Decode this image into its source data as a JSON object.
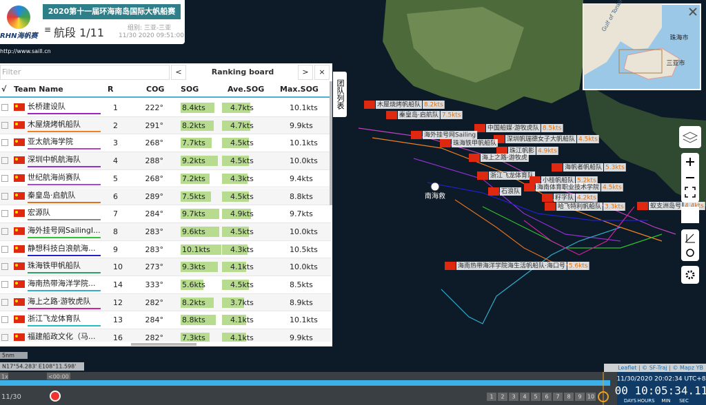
{
  "header": {
    "logo": "RHN海帆赛",
    "url": "http://www.saill.cn",
    "title": "2020第十一届环海南岛国际大帆船赛",
    "leg": "航段 1/11",
    "group": "组别: 三亚-三亚",
    "time": "11/30 2020 09:51:00"
  },
  "panel": {
    "filter": "Filter",
    "title": "Ranking board",
    "prev": "<",
    "next": ">",
    "close": "×",
    "columns": [
      "√",
      "Team Name",
      "R",
      "COG",
      "SOG",
      "Ave.SOG",
      "Max.SOG"
    ],
    "rows": [
      {
        "name": "长桥建设队",
        "r": "1",
        "cog": "222°",
        "sog": "8.4kts",
        "ave": "4.7kts",
        "max": "10.1kts",
        "color": "#a020c0"
      },
      {
        "name": "木屋烧烤帆船队",
        "r": "2",
        "cog": "291°",
        "sog": "8.2kts",
        "ave": "4.7kts",
        "max": "9.9kts",
        "color": "#f08020"
      },
      {
        "name": "亚太航海学院",
        "r": "3",
        "cog": "268°",
        "sog": "7.7kts",
        "ave": "4.5kts",
        "max": "10.1kts",
        "color": "#c040c0"
      },
      {
        "name": "深圳中帆航海队",
        "r": "4",
        "cog": "288°",
        "sog": "9.2kts",
        "ave": "4.5kts",
        "max": "10.0kts",
        "color": "#9030d0"
      },
      {
        "name": "世纪航海尚赛队",
        "r": "5",
        "cog": "268°",
        "sog": "7.2kts",
        "ave": "4.3kts",
        "max": "9.4kts",
        "color": "#b040e0"
      },
      {
        "name": "秦皇岛·启航队",
        "r": "6",
        "cog": "289°",
        "sog": "7.5kts",
        "ave": "4.5kts",
        "max": "8.8kts",
        "color": "#e07020"
      },
      {
        "name": "宏源队",
        "r": "7",
        "cog": "284°",
        "sog": "9.7kts",
        "ave": "4.9kts",
        "max": "9.7kts",
        "color": "#888888"
      },
      {
        "name": "海外挂号网SailingI...",
        "r": "8",
        "cog": "283°",
        "sog": "9.6kts",
        "ave": "4.5kts",
        "max": "10.0kts",
        "color": "#30c030"
      },
      {
        "name": "静想科技白浪航海...",
        "r": "9",
        "cog": "283°",
        "sog": "10.1kts",
        "ave": "4.3kts",
        "max": "10.5kts",
        "color": "#2020d0"
      },
      {
        "name": "珠海铁甲帆船队",
        "r": "10",
        "cog": "273°",
        "sog": "9.3kts",
        "ave": "4.1kts",
        "max": "10.0kts",
        "color": "#30a060"
      },
      {
        "name": "海南热带海洋学院...",
        "r": "14",
        "cog": "333°",
        "sog": "5.6kts",
        "ave": "4.5kts",
        "max": "8.5kts",
        "color": "#30b0d0"
      },
      {
        "name": "海上之路·游牧虎队",
        "r": "12",
        "cog": "282°",
        "sog": "8.2kts",
        "ave": "3.7kts",
        "max": "8.9kts",
        "color": "#d020a0"
      },
      {
        "name": "浙江飞龙体育队",
        "r": "13",
        "cog": "284°",
        "sog": "8.8kts",
        "ave": "4.1kts",
        "max": "10.1kts",
        "color": "#20c0c0"
      },
      {
        "name": "福建船政文化（马...",
        "r": "16",
        "cog": "282°",
        "sog": "7.3kts",
        "ave": "4.1kts",
        "max": "9.9kts",
        "color": "#c080a0"
      }
    ]
  },
  "side_tab": "团队列表",
  "map": {
    "places": [
      "南海救"
    ],
    "boats": [
      {
        "name": "木屋烧烤帆船队",
        "speed": "8.2kts"
      },
      {
        "name": "秦皇岛·启航队",
        "speed": "7.5kts"
      },
      {
        "name": "中国船媒·游牧虎队",
        "speed": "8.5kts"
      },
      {
        "name": "海外挂号网Sailing"
      },
      {
        "name": "深圳帆瑞德女子大帆船队",
        "speed": "4.5kts"
      },
      {
        "name": "珠海铁甲帆船队"
      },
      {
        "name": "珠江帆影",
        "speed": "4.9kts"
      },
      {
        "name": "海上之路·游牧虎"
      },
      {
        "name": "海帆者帆船队",
        "speed": "5.3kts"
      },
      {
        "name": "浙江飞龙体育队"
      },
      {
        "name": "小桂帆船队",
        "speed": "5.2kts"
      },
      {
        "name": "海南体育职业技术学院",
        "speed": "4.5kts"
      },
      {
        "name": "石浪队"
      },
      {
        "name": "籽字队",
        "speed": "4.2kts"
      },
      {
        "name": "哈飞特利帆船队",
        "speed": "3.3kts"
      },
      {
        "name": "蚁支洲岛号",
        "speed": "4.4kts"
      },
      {
        "name": "海南热带海洋学院海生活帆船队·海口号",
        "speed": "5.6kts"
      }
    ]
  },
  "minimap": {
    "places": [
      "Gulf of Tonkin",
      "珠海市",
      "三亚市"
    ]
  },
  "footer": {
    "attribution": "Leaflet | © SF-Traj | © Mapz YB",
    "coords": "N17°54.283'  E108°11.598'",
    "scale": "5nm",
    "speed": "1x",
    "offset": "<00:00",
    "date": "11/30",
    "clock": "11/30/2020 20:02:34 UTC+8",
    "countdown": "00 10:05:34.11",
    "units": [
      "DAYS",
      "HOURS",
      "MIN",
      "SEC"
    ],
    "pages": [
      "1",
      "2",
      "3",
      "4",
      "5",
      "6",
      "7",
      "8",
      "9",
      "10"
    ]
  }
}
